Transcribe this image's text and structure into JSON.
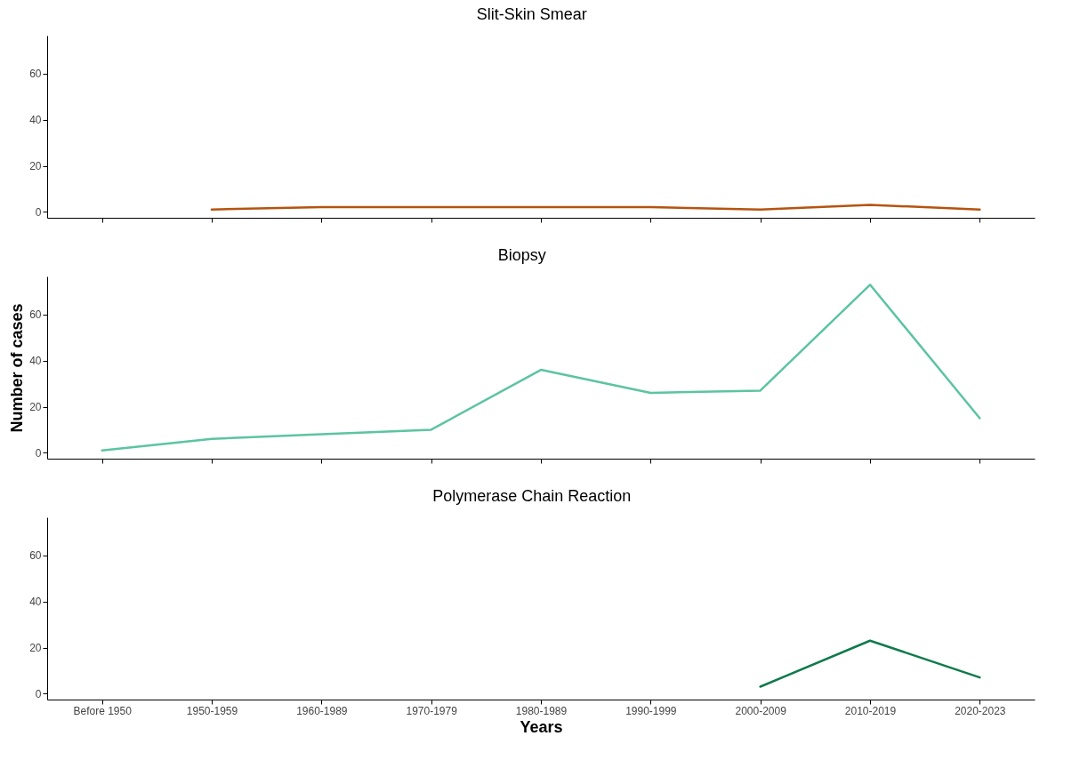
{
  "chart_data": [
    {
      "type": "line",
      "title": "Slit-Skin Smear",
      "categories": [
        null,
        null,
        null,
        null,
        null,
        null,
        null,
        null,
        null
      ],
      "series": [
        {
          "color": "#b5540f",
          "values": [
            null,
            1,
            2,
            2,
            2,
            2,
            1,
            3,
            1
          ]
        }
      ],
      "ylim": [
        -2.6,
        76.6
      ],
      "yticks": [
        0,
        20,
        40,
        60
      ],
      "grid": false,
      "tick_labels": "y"
    },
    {
      "type": "line",
      "title": "Biopsy",
      "ylabel": "Number of cases",
      "categories": [
        null,
        null,
        null,
        null,
        null,
        null,
        null,
        null,
        null
      ],
      "series": [
        {
          "color": "#5cc4a0",
          "values": [
            1,
            6,
            8,
            10,
            36,
            26,
            27,
            73,
            15
          ]
        }
      ],
      "ylim": [
        -2.6,
        76.6
      ],
      "yticks": [
        0,
        20,
        40,
        60
      ],
      "grid": false,
      "tick_labels": "y"
    },
    {
      "type": "line",
      "title": "Polymerase Chain Reaction",
      "xlabel": "Years",
      "categories": [
        "Before 1950",
        "1950-1959",
        "1960-1989",
        "1970-1979",
        "1980-1989",
        "1990-1999",
        "2000-2009",
        "2010-2019",
        "2020-2023"
      ],
      "series": [
        {
          "color": "#0f7a4c",
          "values": [
            null,
            null,
            null,
            null,
            null,
            null,
            3,
            23,
            7
          ]
        }
      ],
      "ylim": [
        -2.6,
        76.6
      ],
      "yticks": [
        0,
        20,
        40,
        60
      ],
      "grid": false
    }
  ]
}
